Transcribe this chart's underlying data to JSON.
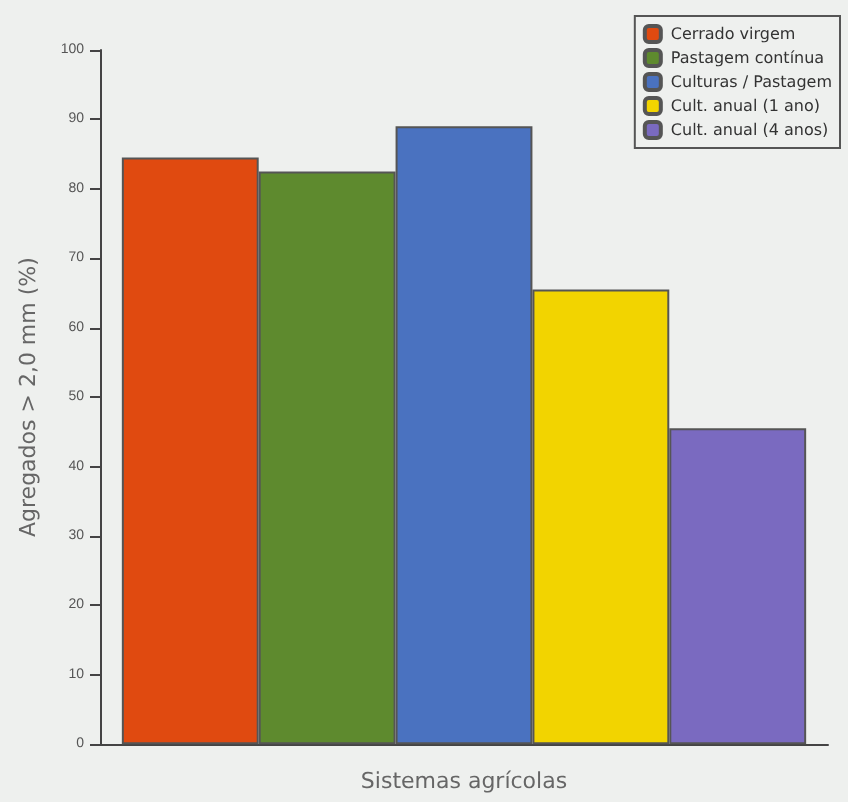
{
  "chart_data": {
    "type": "bar",
    "xlabel": "Sistemas agrícolas",
    "ylabel": "Agregados > 2,0 mm (%)",
    "categories": [
      null
    ],
    "series": [
      {
        "name": "Cerrado virgem",
        "color": "#e04a10",
        "values": [
          84.5
        ]
      },
      {
        "name": "Pastagem contínua",
        "color": "#5e8a2e",
        "values": [
          82.5
        ]
      },
      {
        "name": "Culturas / Pastagem",
        "color": "#4a72c0",
        "values": [
          89
        ]
      },
      {
        "name": "Cult. anual (1 ano)",
        "color": "#f2d400",
        "values": [
          65.5
        ]
      },
      {
        "name": "Cult. anual (4 anos)",
        "color": "#7a6ac0",
        "values": [
          45.5
        ]
      }
    ],
    "ylim": [
      0,
      100
    ],
    "yticks": [
      0,
      10,
      20,
      30,
      40,
      50,
      60,
      70,
      80,
      90,
      100
    ],
    "grid": false,
    "legend": "top right"
  }
}
